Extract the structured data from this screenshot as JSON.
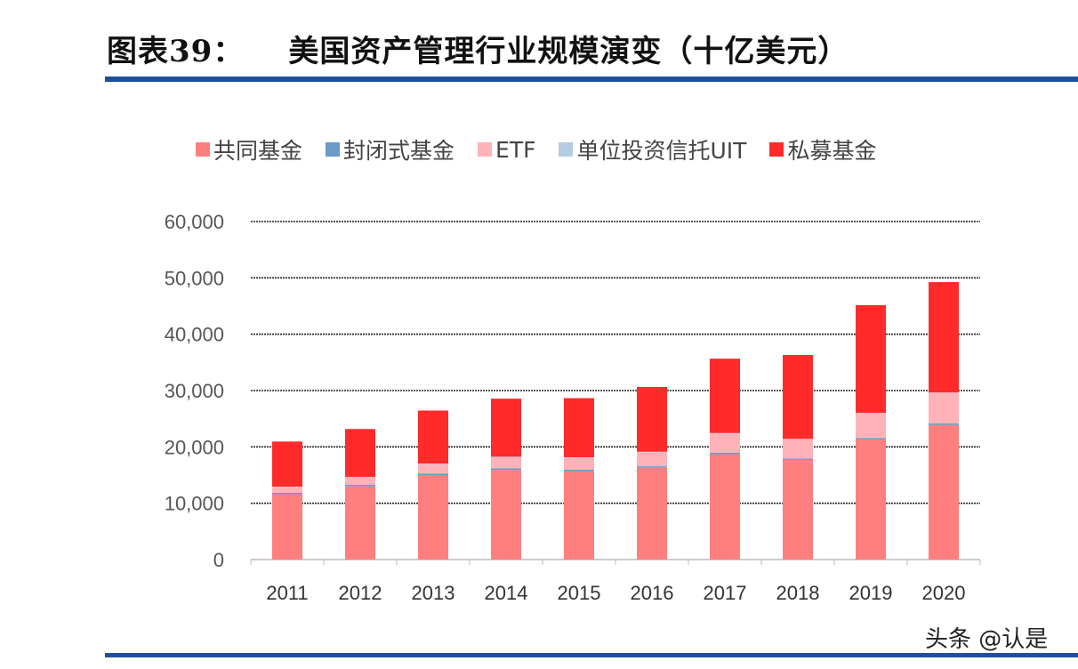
{
  "title": {
    "number": "图表39：",
    "text": "美国资产管理行业规模演变（十亿美元）"
  },
  "watermark": "头条 @认是",
  "chart_data": {
    "type": "bar",
    "stacked": true,
    "title": "美国资产管理行业规模演变（十亿美元）",
    "categories": [
      "2011",
      "2012",
      "2013",
      "2014",
      "2015",
      "2016",
      "2017",
      "2018",
      "2019",
      "2020"
    ],
    "series": [
      {
        "name": "共同基金",
        "color": "#ff7f7f",
        "values": [
          11600,
          13000,
          15000,
          15900,
          15700,
          16300,
          18700,
          17700,
          21300,
          23900
        ]
      },
      {
        "name": "封闭式基金",
        "color": "#6a9bc8",
        "values": [
          240,
          260,
          280,
          290,
          260,
          260,
          280,
          250,
          280,
          280
        ]
      },
      {
        "name": "ETF",
        "color": "#ffb3b8",
        "values": [
          1050,
          1340,
          1680,
          1970,
          2100,
          2500,
          3400,
          3400,
          4400,
          5400
        ]
      },
      {
        "name": "单位投资信托UIT",
        "color": "#b4cce4",
        "values": [
          60,
          70,
          90,
          100,
          90,
          80,
          80,
          70,
          70,
          70
        ]
      },
      {
        "name": "私募基金",
        "color": "#ff2a2a",
        "values": [
          8000,
          8500,
          9400,
          10300,
          10500,
          11500,
          13200,
          14900,
          19100,
          19600
        ]
      }
    ],
    "ylim": [
      0,
      60000
    ],
    "yticks": [
      "0",
      "10,000",
      "20,000",
      "30,000",
      "40,000",
      "50,000",
      "60,000"
    ],
    "grid": true,
    "legend": "top"
  }
}
